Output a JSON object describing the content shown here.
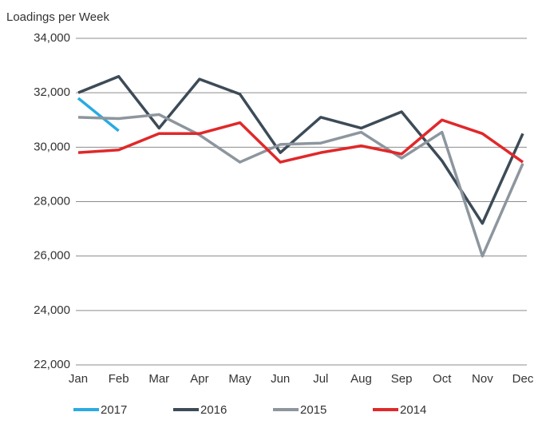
{
  "chart_data": {
    "type": "line",
    "y_label": "Loadings per Week",
    "categories": [
      "Jan",
      "Feb",
      "Mar",
      "Apr",
      "May",
      "Jun",
      "Jul",
      "Aug",
      "Sep",
      "Oct",
      "Nov",
      "Dec"
    ],
    "series": [
      {
        "name": "2017",
        "color": "#29abe2",
        "values": [
          31800,
          30600,
          null,
          null,
          null,
          null,
          null,
          null,
          null,
          null,
          null,
          null
        ]
      },
      {
        "name": "2016",
        "color": "#3d4b57",
        "values": [
          32000,
          32600,
          30700,
          32500,
          31950,
          29800,
          31100,
          30700,
          31300,
          29500,
          27200,
          30500
        ]
      },
      {
        "name": "2015",
        "color": "#8d969e",
        "values": [
          31100,
          31050,
          31200,
          30450,
          29450,
          30100,
          30150,
          30550,
          29600,
          30550,
          26000,
          29400
        ]
      },
      {
        "name": "2014",
        "color": "#e0282a",
        "values": [
          29800,
          29900,
          30500,
          30500,
          30900,
          29450,
          29800,
          30050,
          29750,
          31000,
          30500,
          29450
        ]
      }
    ],
    "ylim": [
      22000,
      34000
    ],
    "yticks": [
      {
        "value": 22000,
        "label": "22,000"
      },
      {
        "value": 24000,
        "label": "24,000"
      },
      {
        "value": 26000,
        "label": "26,000"
      },
      {
        "value": 28000,
        "label": "28,000"
      },
      {
        "value": 30000,
        "label": "30,000"
      },
      {
        "value": 32000,
        "label": "32,000"
      },
      {
        "value": 34000,
        "label": "34,000"
      }
    ],
    "grid": true,
    "legend": "bottom"
  }
}
